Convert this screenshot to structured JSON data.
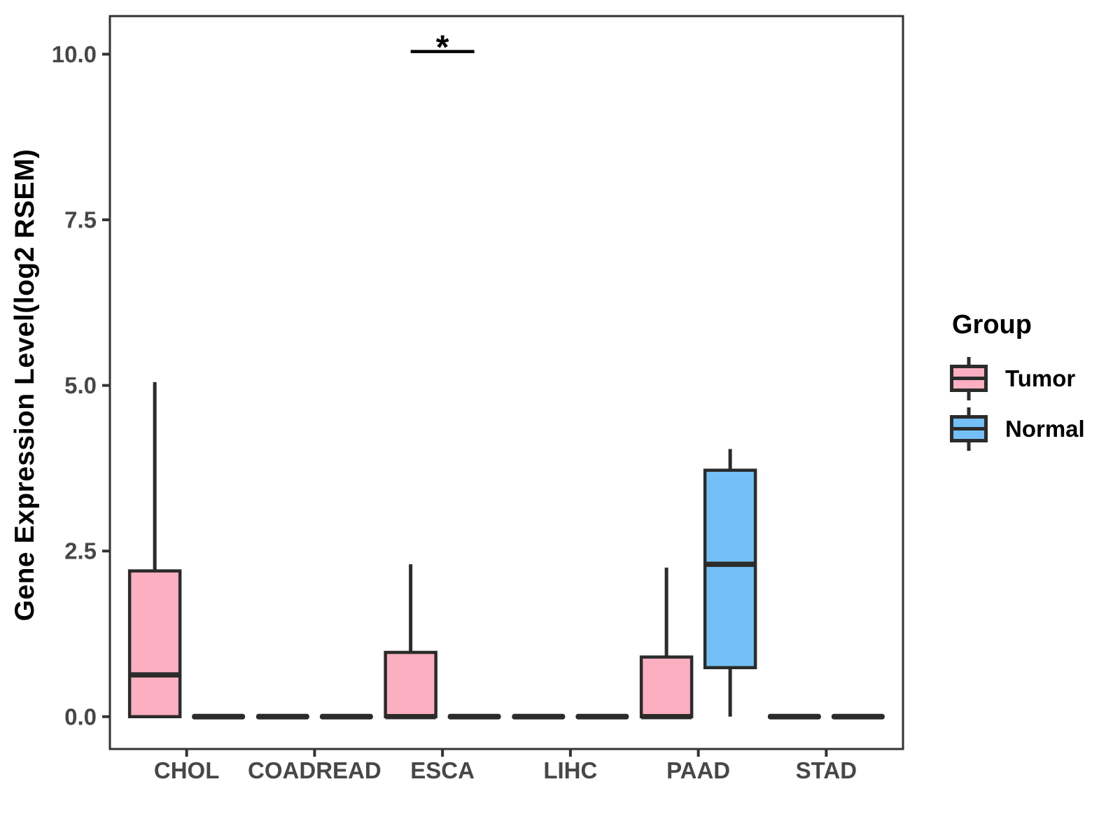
{
  "legend": {
    "title": "Group",
    "items": [
      {
        "label": "Tumor",
        "color": "#FBAFC0"
      },
      {
        "label": "Normal",
        "color": "#74BFF5"
      }
    ]
  },
  "chart_data": {
    "type": "boxplot",
    "title": "",
    "xlabel": "",
    "ylabel": "Gene Expression Level(log2 RSEM)",
    "categories": [
      "CHOL",
      "COADREAD",
      "ESCA",
      "LIHC",
      "PAAD",
      "STAD"
    ],
    "y_tick_labels": [
      "0.0",
      "2.5",
      "5.0",
      "7.5",
      "10.0"
    ],
    "y_tick_values": [
      0.0,
      2.5,
      5.0,
      7.5,
      10.0
    ],
    "ylim": [
      -0.5,
      10.6
    ],
    "grid": false,
    "panel_border": true,
    "legend_position": "right",
    "stroke_color": "#2B2B2B",
    "axis_color": "#333333",
    "series": [
      {
        "name": "Tumor",
        "color": "#FBAFC0",
        "boxes": [
          {
            "category": "CHOL",
            "min": 0,
            "q1": 0,
            "median": 0.63,
            "q3": 2.2,
            "max": 5.05
          },
          {
            "category": "COADREAD",
            "min": 0,
            "q1": 0,
            "median": 0,
            "q3": 0,
            "max": 0
          },
          {
            "category": "ESCA",
            "min": 0,
            "q1": 0,
            "median": 0,
            "q3": 0.97,
            "max": 2.3
          },
          {
            "category": "LIHC",
            "min": 0,
            "q1": 0,
            "median": 0,
            "q3": 0,
            "max": 0
          },
          {
            "category": "PAAD",
            "min": 0,
            "q1": 0,
            "median": 0,
            "q3": 0.9,
            "max": 2.25
          },
          {
            "category": "STAD",
            "min": 0,
            "q1": 0,
            "median": 0,
            "q3": 0,
            "max": 0
          }
        ]
      },
      {
        "name": "Normal",
        "color": "#74BFF5",
        "boxes": [
          {
            "category": "CHOL",
            "min": 0,
            "q1": 0,
            "median": 0,
            "q3": 0,
            "max": 0
          },
          {
            "category": "COADREAD",
            "min": 0,
            "q1": 0,
            "median": 0,
            "q3": 0,
            "max": 0
          },
          {
            "category": "ESCA",
            "min": 0,
            "q1": 0,
            "median": 0,
            "q3": 0,
            "max": 0
          },
          {
            "category": "LIHC",
            "min": 0,
            "q1": 0,
            "median": 0,
            "q3": 0,
            "max": 0
          },
          {
            "category": "PAAD",
            "min": 0,
            "q1": 0.74,
            "median": 2.3,
            "q3": 3.72,
            "max": 4.04
          },
          {
            "category": "STAD",
            "min": 0,
            "q1": 0,
            "median": 0,
            "q3": 0,
            "max": 0
          }
        ]
      }
    ],
    "annotations": [
      {
        "type": "significance",
        "category": "ESCA",
        "between": [
          "Tumor",
          "Normal"
        ],
        "label": "*",
        "y": 10.04
      }
    ]
  }
}
